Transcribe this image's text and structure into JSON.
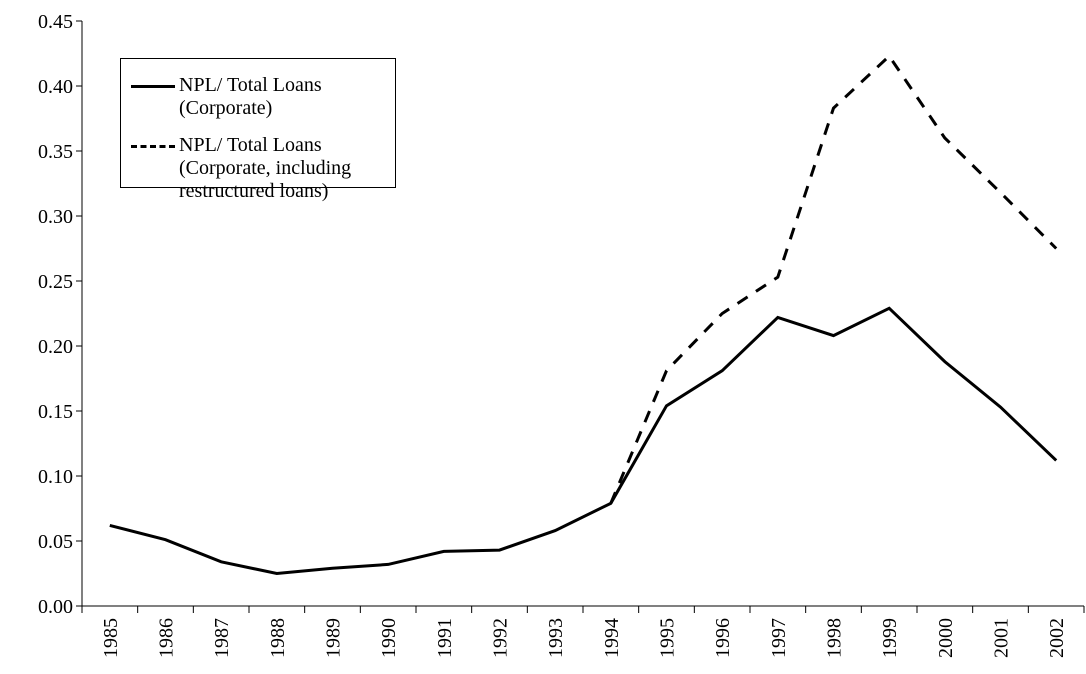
{
  "chart_data": {
    "type": "line",
    "categories": [
      "1985",
      "1986",
      "1987",
      "1988",
      "1989",
      "1990",
      "1991",
      "1992",
      "1993",
      "1994",
      "1995",
      "1996",
      "1997",
      "1998",
      "1999",
      "2000",
      "2001",
      "2002"
    ],
    "series": [
      {
        "name": "NPL/ Total Loans (Corporate)",
        "color": "#000000",
        "style": "solid",
        "values": [
          0.062,
          0.051,
          0.034,
          0.025,
          0.029,
          0.032,
          0.042,
          0.043,
          0.058,
          0.079,
          0.154,
          0.181,
          0.222,
          0.208,
          0.229,
          0.188,
          0.153,
          0.112
        ]
      },
      {
        "name": "NPL/ Total Loans (Corporate, including restructured loans)",
        "color": "#000000",
        "style": "dashed",
        "values": [
          null,
          null,
          null,
          null,
          null,
          null,
          null,
          null,
          null,
          0.079,
          0.181,
          0.225,
          0.253,
          0.383,
          0.423,
          0.36,
          0.318,
          0.275
        ]
      }
    ],
    "ylim": [
      0,
      0.45
    ],
    "yticks": [
      {
        "value": 0,
        "label": "0.00"
      },
      0.05,
      {
        "value": 0.1,
        "label": "0.10"
      },
      0.15,
      {
        "value": 0.2,
        "label": "0.20"
      },
      0.25,
      {
        "value": 0.3,
        "label": "0.30"
      },
      0.35,
      {
        "value": 0.4,
        "label": "0.40"
      },
      0.45
    ],
    "legend": "upper left"
  }
}
